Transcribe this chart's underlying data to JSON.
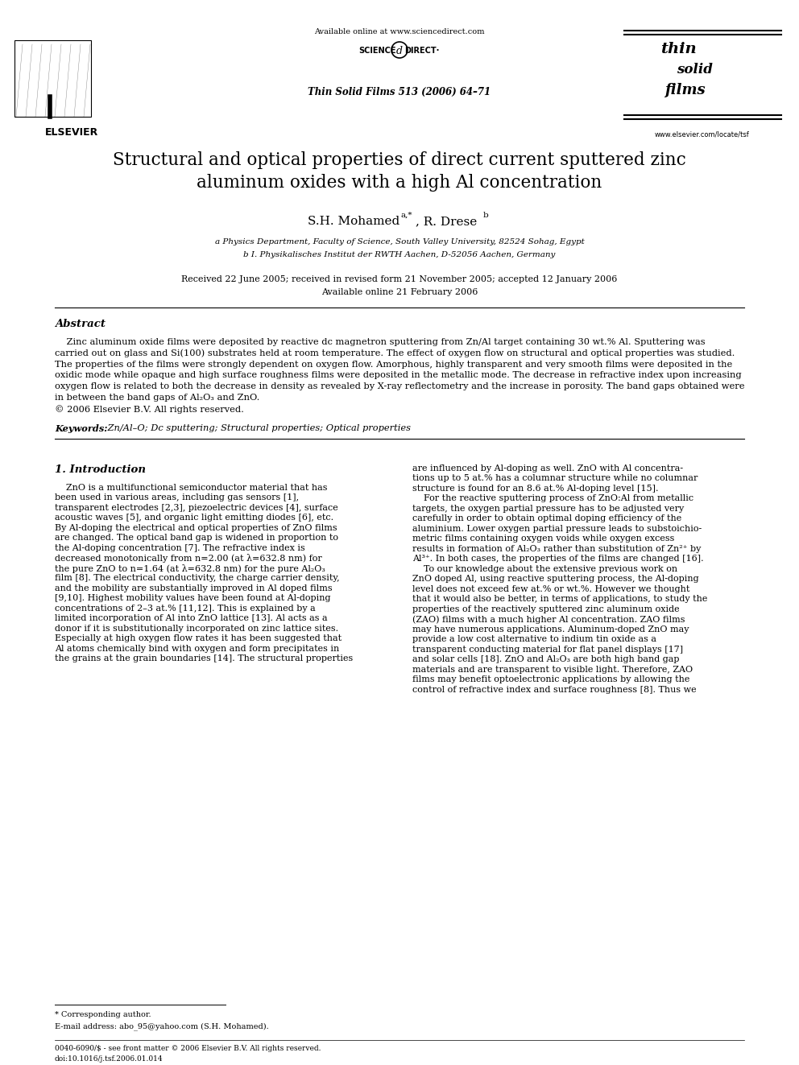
{
  "page_background": "#ffffff",
  "page_width": 9.92,
  "page_height": 13.23,
  "dpi": 100,
  "available_online_text": "Available online at www.sciencedirect.com",
  "journal_ref_text": "Thin Solid Films 513 (2006) 64–71",
  "elsevier_text": "ELSEVIER",
  "website_text": "www.elsevier.com/locate/tsf",
  "title": "Structural and optical properties of direct current sputtered zinc\naluminum oxides with a high Al concentration",
  "author_main": "S.H. Mohamed",
  "author_sup1": "a,*",
  "author_sep": ", R. Drese",
  "author_sup2": "b",
  "affiliation_a": "a Physics Department, Faculty of Science, South Valley University, 82524 Sohag, Egypt",
  "affiliation_b": "b I. Physikalisches Institut der RWTH Aachen, D-52056 Aachen, Germany",
  "received_text": "Received 22 June 2005; received in revised form 21 November 2005; accepted 12 January 2006",
  "available_text": "Available online 21 February 2006",
  "abstract_heading": "Abstract",
  "abstract_indent": "    Zinc aluminum oxide films were deposited by reactive dc magnetron sputtering from Zn/Al target containing 30 wt.% Al. Sputtering was",
  "abstract_lines": [
    "    Zinc aluminum oxide films were deposited by reactive dc magnetron sputtering from Zn/Al target containing 30 wt.% Al. Sputtering was",
    "carried out on glass and Si(100) substrates held at room temperature. The effect of oxygen flow on structural and optical properties was studied.",
    "The properties of the films were strongly dependent on oxygen flow. Amorphous, highly transparent and very smooth films were deposited in the",
    "oxidic mode while opaque and high surface roughness films were deposited in the metallic mode. The decrease in refractive index upon increasing",
    "oxygen flow is related to both the decrease in density as revealed by X-ray reflectometry and the increase in porosity. The band gaps obtained were",
    "in between the band gaps of Al₂O₃ and ZnO.",
    "© 2006 Elsevier B.V. All rights reserved."
  ],
  "keywords_label": "Keywords:",
  "keywords_text": " Zn/Al–O; Dc sputtering; Structural properties; Optical properties",
  "section1_heading": "1. Introduction",
  "col1_lines": [
    "    ZnO is a multifunctional semiconductor material that has",
    "been used in various areas, including gas sensors [1],",
    "transparent electrodes [2,3], piezoelectric devices [4], surface",
    "acoustic waves [5], and organic light emitting diodes [6], etc.",
    "By Al-doping the electrical and optical properties of ZnO films",
    "are changed. The optical band gap is widened in proportion to",
    "the Al-doping concentration [7]. The refractive index is",
    "decreased monotonically from n=2.00 (at λ=632.8 nm) for",
    "the pure ZnO to n=1.64 (at λ=632.8 nm) for the pure Al₂O₃",
    "film [8]. The electrical conductivity, the charge carrier density,",
    "and the mobility are substantially improved in Al doped films",
    "[9,10]. Highest mobility values have been found at Al-doping",
    "concentrations of 2–3 at.% [11,12]. This is explained by a",
    "limited incorporation of Al into ZnO lattice [13]. Al acts as a",
    "donor if it is substitutionally incorporated on zinc lattice sites.",
    "Especially at high oxygen flow rates it has been suggested that",
    "Al atoms chemically bind with oxygen and form precipitates in",
    "the grains at the grain boundaries [14]. The structural properties"
  ],
  "col2_lines": [
    "are influenced by Al-doping as well. ZnO with Al concentra-",
    "tions up to 5 at.% has a columnar structure while no columnar",
    "structure is found for an 8.6 at.% Al-doping level [15].",
    "    For the reactive sputtering process of ZnO:Al from metallic",
    "targets, the oxygen partial pressure has to be adjusted very",
    "carefully in order to obtain optimal doping efficiency of the",
    "aluminium. Lower oxygen partial pressure leads to substoichio-",
    "metric films containing oxygen voids while oxygen excess",
    "results in formation of Al₂O₃ rather than substitution of Zn²⁺ by",
    "Al³⁺. In both cases, the properties of the films are changed [16].",
    "    To our knowledge about the extensive previous work on",
    "ZnO doped Al, using reactive sputtering process, the Al-doping",
    "level does not exceed few at.% or wt.%. However we thought",
    "that it would also be better, in terms of applications, to study the",
    "properties of the reactively sputtered zinc aluminum oxide",
    "(ZAO) films with a much higher Al concentration. ZAO films",
    "may have numerous applications. Aluminum-doped ZnO may",
    "provide a low cost alternative to indium tin oxide as a",
    "transparent conducting material for flat panel displays [17]",
    "and solar cells [18]. ZnO and Al₂O₃ are both high band gap",
    "materials and are transparent to visible light. Therefore, ZAO",
    "films may benefit optoelectronic applications by allowing the",
    "control of refractive index and surface roughness [8]. Thus we"
  ],
  "corresponding_note": "* Corresponding author.",
  "email_note": "E-mail address: abo_95@yahoo.com (S.H. Mohamed).",
  "footer_line1": "0040-6090/$ - see front matter © 2006 Elsevier B.V. All rights reserved.",
  "footer_line2": "doi:10.1016/j.tsf.2006.01.014"
}
